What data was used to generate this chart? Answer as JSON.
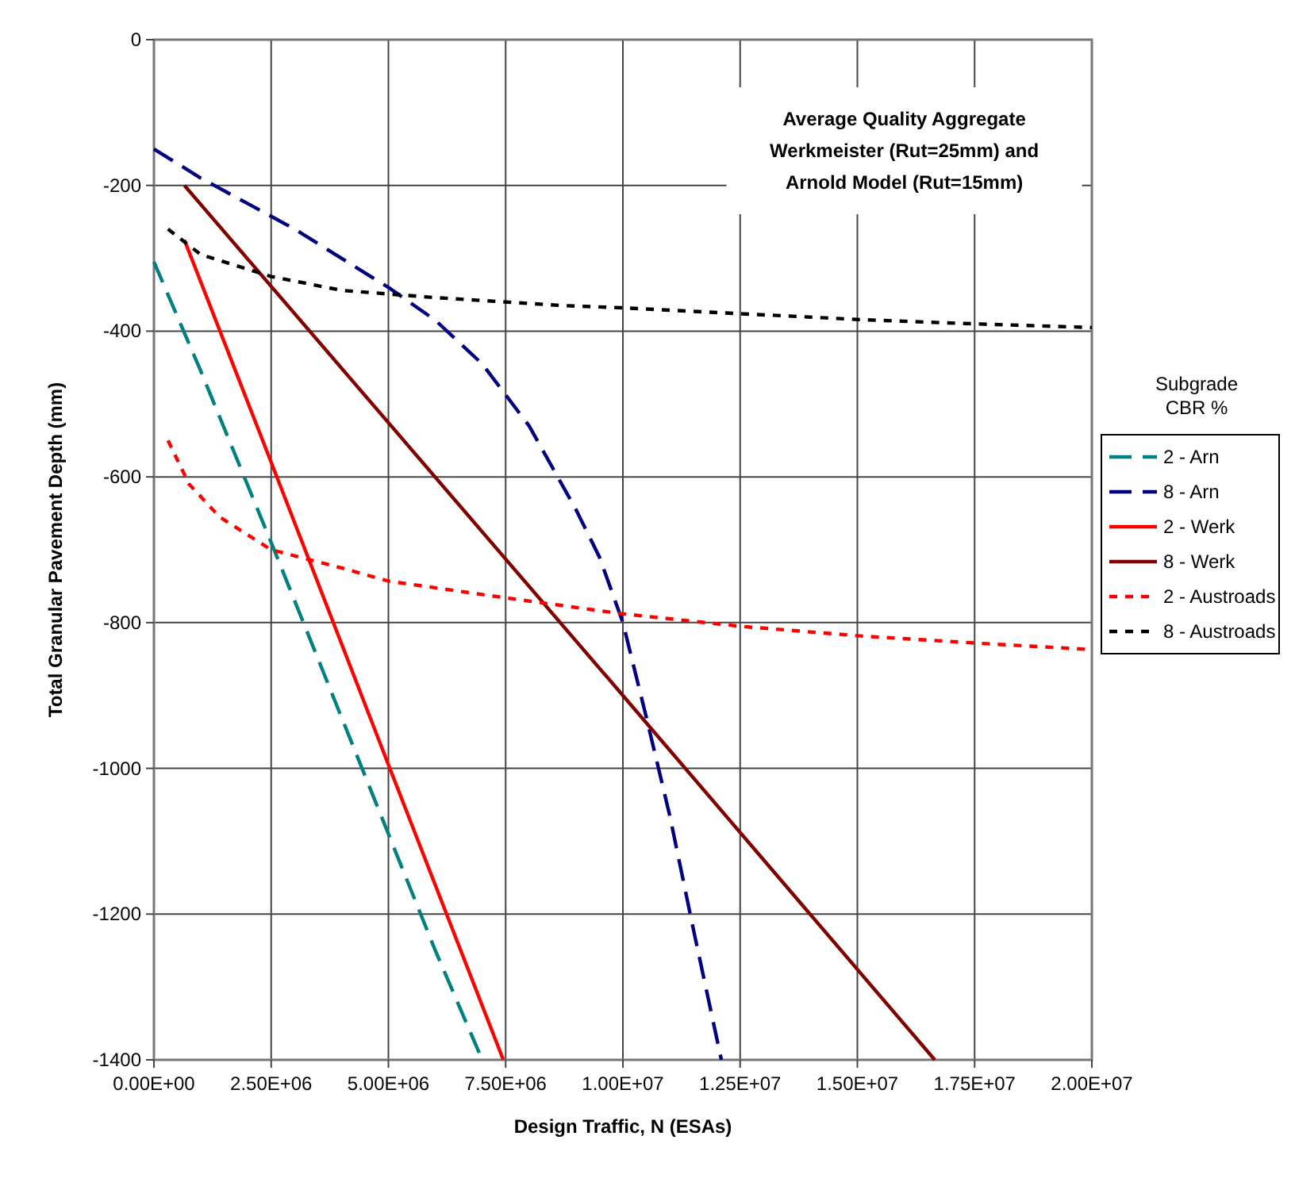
{
  "chart_data": {
    "type": "line",
    "xlabel": "Design Traffic, N (ESAs)",
    "ylabel": "Total Granular Pavement Depth (mm)",
    "legend_title": "Subgrade CBR %",
    "legend": "right",
    "grid": true,
    "annotations": [
      "Average Quality Aggregate Werkmeister (Rut=25mm) and Arnold Model (Rut=15mm)"
    ],
    "xlim": [
      0,
      20000000
    ],
    "ylim": [
      -1400,
      0
    ],
    "xticks": [
      {
        "value": 0,
        "label": "0.00E+00"
      },
      {
        "value": 2500000,
        "label": "2.50E+06"
      },
      {
        "value": 5000000,
        "label": "5.00E+06"
      },
      {
        "value": 7500000,
        "label": "7.50E+06"
      },
      {
        "value": 10000000,
        "label": "1.00E+07"
      },
      {
        "value": 12500000,
        "label": "1.25E+07"
      },
      {
        "value": 15000000,
        "label": "1.50E+07"
      },
      {
        "value": 17500000,
        "label": "1.75E+07"
      },
      {
        "value": 20000000,
        "label": "2.00E+07"
      }
    ],
    "yticks": [
      0,
      -200,
      -400,
      -600,
      -800,
      -1000,
      -1200,
      -1400
    ],
    "series": [
      {
        "name": "2 - Arn",
        "color": "#008080",
        "line_style": "dashed",
        "x": [
          0,
          500000,
          1000000,
          2500000,
          5000000,
          6000000,
          7000000
        ],
        "values": [
          -305,
          -380,
          -455,
          -690,
          -1090,
          -1250,
          -1400
        ]
      },
      {
        "name": "8 - Arn",
        "color": "#000080",
        "line_style": "dashed",
        "x": [
          0,
          1000000,
          2000000,
          3000000,
          4000000,
          5000000,
          6000000,
          7000000,
          8000000,
          9000000,
          9500000,
          10000000,
          10500000,
          11000000,
          11500000,
          12100000
        ],
        "values": [
          -150,
          -190,
          -225,
          -260,
          -300,
          -340,
          -385,
          -445,
          -530,
          -645,
          -710,
          -800,
          -930,
          -1065,
          -1220,
          -1400
        ]
      },
      {
        "name": "2 - Werk",
        "color": "#ff0000",
        "line_style": "solid",
        "x": [
          650000,
          2500000,
          5000000,
          7450000
        ],
        "values": [
          -275,
          -580,
          -995,
          -1400
        ]
      },
      {
        "name": "8 - Werk",
        "color": "#800000",
        "line_style": "solid",
        "x": [
          650000,
          10000000,
          16650000
        ],
        "values": [
          -200,
          -900,
          -1400
        ]
      },
      {
        "name": "2 - Austroads",
        "color": "#ff0000",
        "line_style": "dotted",
        "x": [
          300000,
          750000,
          1400000,
          2500000,
          4000000,
          5000000,
          7500000,
          10000000,
          12500000,
          15000000,
          17500000,
          20000000
        ],
        "values": [
          -550,
          -610,
          -655,
          -700,
          -725,
          -743,
          -766,
          -788,
          -805,
          -818,
          -828,
          -837
        ]
      },
      {
        "name": "8 - Austroads",
        "color": "#000000",
        "line_style": "dotted",
        "x": [
          300000,
          1000000,
          2500000,
          4000000,
          6000000,
          8750000,
          10000000,
          12500000,
          15000000,
          17500000,
          20000000
        ],
        "values": [
          -260,
          -295,
          -325,
          -344,
          -354,
          -365,
          -368,
          -376,
          -384,
          -390,
          -395
        ]
      }
    ]
  }
}
